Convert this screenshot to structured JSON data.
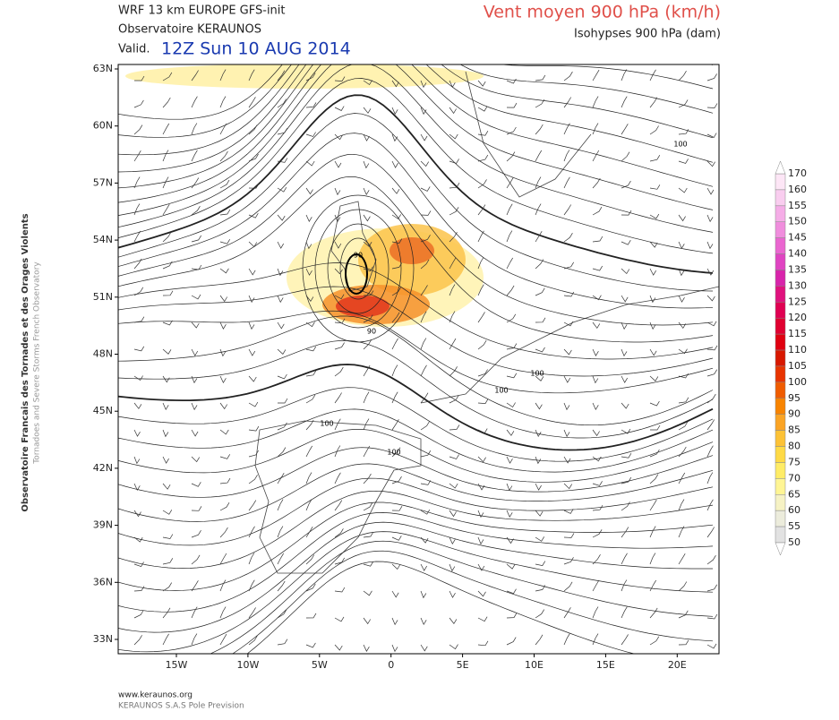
{
  "header": {
    "model": "WRF 13 km EUROPE   GFS-init",
    "source": "Observatoire KERAUNOS",
    "valid_prefix": "Valid.",
    "valid": "12Z Sun 10 AUG 2014",
    "title": "Vent moyen 900 hPa (km/h)",
    "subtitle": "Isohypses 900 hPa (dam)"
  },
  "side_text": [
    "Observatoire Francais des Tornades et des Orages Violents",
    "Tornadoes and Severe Storms French Observatory"
  ],
  "map": {
    "lat_labels": [
      "63N",
      "60N",
      "57N",
      "54N",
      "51N",
      "48N",
      "45N",
      "42N",
      "39N",
      "36N",
      "33N"
    ],
    "lon_labels": [
      "15W",
      "10W",
      "5W",
      "0",
      "5E",
      "10E",
      "15E",
      "20E"
    ],
    "contour_labels": [
      "100",
      "100",
      "100",
      "100",
      "100",
      "90",
      "90"
    ]
  },
  "colorbar": {
    "levels": [
      "170",
      "160",
      "155",
      "150",
      "145",
      "140",
      "135",
      "130",
      "125",
      "120",
      "115",
      "110",
      "105",
      "100",
      "95",
      "90",
      "85",
      "80",
      "75",
      "70",
      "65",
      "60",
      "55",
      "50"
    ],
    "colors": [
      "#fde6f6",
      "#f9cdef",
      "#f5ade7",
      "#f08ddd",
      "#ea66d0",
      "#e044c2",
      "#d824ab",
      "#e0127e",
      "#e00052",
      "#e00030",
      "#e00010",
      "#d81800",
      "#e83400",
      "#f05c00",
      "#f88400",
      "#fba424",
      "#fdc236",
      "#ffda46",
      "#ffec66",
      "#fff594",
      "#f6f2c4",
      "#ececdc",
      "#e2e2e2"
    ]
  },
  "footer": [
    "www.keraunos.org",
    "KERAUNOS S.A.S Pole Prevision"
  ]
}
